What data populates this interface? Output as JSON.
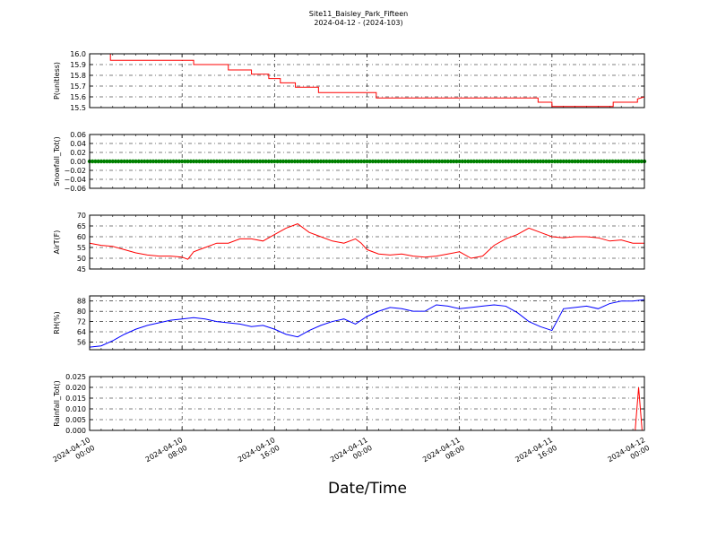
{
  "figure": {
    "title": "Site11_Baisley_Park_Fifteen",
    "subtitle": "2024-04-12 - (2024-103)",
    "xlabel": "Date/Time"
  },
  "chart_data": [
    {
      "type": "line",
      "ylabel": "P(unitless)",
      "ylim": [
        15.5,
        16.0
      ],
      "yticks": [
        "16.0",
        "15.9",
        "15.8",
        "15.7",
        "15.6",
        "15.5"
      ],
      "ytick_values": [
        16.0,
        15.9,
        15.8,
        15.7,
        15.6,
        15.5
      ],
      "xlim": [
        0,
        48
      ],
      "x_tick_labels": [
        "2024-04-10 00:00",
        "2024-04-10 08:00",
        "2024-04-10 16:00",
        "2024-04-11 00:00",
        "2024-04-11 08:00",
        "2024-04-11 16:00",
        "2024-04-12 00:00"
      ],
      "grid": true,
      "series": [
        {
          "color": "#ff0000",
          "x": [
            0,
            1.8,
            1.8,
            9,
            9,
            12,
            12,
            14,
            14,
            15.5,
            15.5,
            16.5,
            16.5,
            17.8,
            17.8,
            19.8,
            19.8,
            24.8,
            24.8,
            38.8,
            38.8,
            40,
            40,
            45.3,
            45.3,
            47.4,
            47.4,
            48
          ],
          "y": [
            16.0,
            16.0,
            15.94,
            15.94,
            15.9,
            15.9,
            15.85,
            15.85,
            15.81,
            15.81,
            15.77,
            15.77,
            15.73,
            15.73,
            15.69,
            15.69,
            15.64,
            15.64,
            15.59,
            15.59,
            15.55,
            15.55,
            15.51,
            15.51,
            15.55,
            15.55,
            15.58,
            15.6
          ]
        }
      ]
    },
    {
      "type": "scatter",
      "ylabel": "Snowfall_Tot()",
      "ylim": [
        -0.06,
        0.06
      ],
      "yticks": [
        "0.06",
        "0.04",
        "0.02",
        "0.00",
        "−0.02",
        "−0.04",
        "−0.06"
      ],
      "ytick_values": [
        0.06,
        0.04,
        0.02,
        0.0,
        -0.02,
        -0.04,
        -0.06
      ],
      "xlim": [
        0,
        48
      ],
      "grid": true,
      "series": [
        {
          "color": "#008000",
          "x_range": [
            0,
            48
          ],
          "step": 0.25,
          "y": 0
        }
      ]
    },
    {
      "type": "line",
      "ylabel": "AirT(F)",
      "ylim": [
        45,
        70
      ],
      "yticks": [
        "70",
        "65",
        "60",
        "55",
        "50",
        "45"
      ],
      "ytick_values": [
        70,
        65,
        60,
        55,
        50,
        45
      ],
      "xlim": [
        0,
        48
      ],
      "grid": true,
      "series": [
        {
          "color": "#ff0000",
          "x": [
            0,
            1,
            2,
            3,
            4,
            5,
            6,
            7,
            8,
            8.5,
            9,
            9.5,
            10,
            11,
            12,
            13,
            14,
            15,
            16,
            17,
            18,
            19,
            20,
            21,
            22,
            23,
            23.5,
            24,
            25,
            26,
            27,
            28,
            29,
            30,
            31,
            32,
            33,
            34,
            35,
            36,
            37,
            38,
            39,
            40,
            41,
            42,
            43,
            44,
            45,
            46,
            47,
            48
          ],
          "y": [
            57,
            56,
            55.5,
            54,
            52.5,
            51.5,
            51,
            51,
            50.5,
            49.5,
            53,
            54,
            55,
            57,
            57,
            59,
            59,
            58,
            61,
            64,
            66,
            62,
            60,
            58,
            57,
            59,
            57,
            54,
            52,
            51.5,
            52,
            51,
            50.5,
            51,
            52,
            53,
            50,
            51,
            56,
            59,
            61,
            64,
            62,
            60,
            59.5,
            60,
            60,
            59.5,
            58,
            58.5,
            57,
            57
          ]
        }
      ]
    },
    {
      "type": "line",
      "ylabel": "RH(%)",
      "ylim": [
        50,
        92
      ],
      "yticks": [
        "88",
        "80",
        "72",
        "64",
        "56"
      ],
      "ytick_values": [
        88,
        80,
        72,
        64,
        56
      ],
      "xlim": [
        0,
        48
      ],
      "grid": true,
      "series": [
        {
          "color": "#0000ff",
          "x": [
            0,
            1,
            2,
            3,
            4,
            5,
            6,
            7,
            8,
            9,
            10,
            11,
            12,
            13,
            14,
            15,
            16,
            17,
            18,
            19,
            20,
            21,
            22,
            23,
            24,
            25,
            26,
            27,
            28,
            29,
            30,
            31,
            32,
            33,
            34,
            35,
            36,
            37,
            38,
            39,
            40,
            41,
            42,
            43,
            44,
            45,
            46,
            47,
            48
          ],
          "y": [
            52,
            53,
            57,
            62,
            66,
            69,
            71,
            73,
            74,
            75,
            74,
            72,
            71,
            70,
            68,
            69,
            66,
            62,
            60,
            65,
            69,
            72,
            74,
            70,
            76,
            80,
            83,
            82,
            80,
            80,
            85,
            84,
            82,
            83,
            84,
            85,
            84,
            79,
            72,
            68,
            65,
            82,
            83,
            84,
            82,
            86,
            88,
            88,
            89
          ]
        }
      ]
    },
    {
      "type": "line",
      "ylabel": "Rainfall_Tot()",
      "ylim": [
        0.0,
        0.025
      ],
      "yticks": [
        "0.025",
        "0.020",
        "0.015",
        "0.010",
        "0.005",
        "0.000"
      ],
      "ytick_values": [
        0.025,
        0.02,
        0.015,
        0.01,
        0.005,
        0.0
      ],
      "xlim": [
        0,
        48
      ],
      "grid": true,
      "series": [
        {
          "color": "#ff0000",
          "x": [
            0,
            47.2,
            47.5,
            47.8,
            48
          ],
          "y": [
            0,
            0,
            0.02,
            0,
            0
          ]
        }
      ]
    }
  ]
}
